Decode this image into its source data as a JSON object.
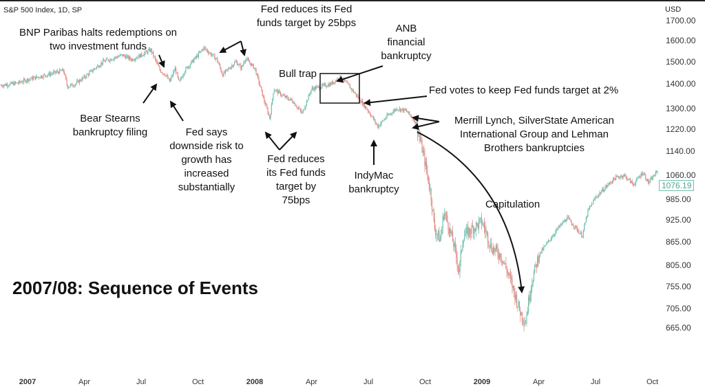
{
  "chart_data": {
    "type": "candlestick",
    "symbol": "S&P 500 Index, 1D, SP",
    "title": "2007/08: Sequence of Events",
    "ylabel": "USD",
    "yscale": "log",
    "ylim": [
      650,
      1720
    ],
    "y_ticks": [
      "1700.00",
      "1600.00",
      "1500.00",
      "1400.00",
      "1300.00",
      "1220.00",
      "1140.00",
      "1060.00",
      "985.00",
      "925.00",
      "865.00",
      "805.00",
      "755.00",
      "705.00",
      "665.00"
    ],
    "x_ticks": [
      {
        "label": "2007",
        "month": 0,
        "bold": true
      },
      {
        "label": "Apr",
        "month": 3
      },
      {
        "label": "Jul",
        "month": 6
      },
      {
        "label": "Oct",
        "month": 9
      },
      {
        "label": "2008",
        "month": 12,
        "bold": true
      },
      {
        "label": "Apr",
        "month": 15
      },
      {
        "label": "Jul",
        "month": 18
      },
      {
        "label": "Oct",
        "month": 21
      },
      {
        "label": "2009",
        "month": 24,
        "bold": true
      },
      {
        "label": "Apr",
        "month": 27
      },
      {
        "label": "Jul",
        "month": 30
      },
      {
        "label": "Oct",
        "month": 33
      }
    ],
    "last_price": "1076.19",
    "series_months_since_jan2007": [
      -1.4,
      -0.5,
      0,
      1,
      1.9,
      2.1,
      2.5,
      3,
      4,
      5,
      5.5,
      6,
      6.5,
      7,
      7.3,
      7.5,
      7.8,
      8,
      8.3,
      9,
      9.3,
      10,
      10.3,
      11,
      11.3,
      11.5,
      12,
      12.5,
      12.8,
      13,
      13.5,
      14,
      14.5,
      15,
      16,
      16.5,
      17,
      17.5,
      18,
      18.5,
      19,
      19.5,
      20,
      20.5,
      21,
      21.3,
      21.5,
      21.8,
      22,
      22.5,
      22.8,
      23,
      23.5,
      24,
      24.5,
      25,
      25.5,
      26,
      26.3,
      26.6,
      27,
      28,
      28.5,
      29,
      29.3,
      29.6,
      30,
      30.5,
      31,
      31.5,
      32,
      32.5,
      32.8,
      33.3
    ],
    "series_close": [
      1395,
      1405,
      1420,
      1440,
      1460,
      1390,
      1400,
      1430,
      1500,
      1530,
      1510,
      1530,
      1555,
      1460,
      1440,
      1410,
      1470,
      1405,
      1460,
      1530,
      1565,
      1510,
      1440,
      1500,
      1470,
      1515,
      1470,
      1330,
      1260,
      1380,
      1350,
      1330,
      1280,
      1380,
      1400,
      1430,
      1390,
      1340,
      1290,
      1230,
      1270,
      1300,
      1290,
      1250,
      1100,
      1000,
      900,
      870,
      950,
      860,
      790,
      880,
      900,
      920,
      850,
      830,
      770,
      700,
      676,
      760,
      830,
      900,
      930,
      900,
      880,
      950,
      990,
      1020,
      1050,
      1060,
      1030,
      1070,
      1035,
      1076
    ],
    "colors": {
      "up": "#6fbfae",
      "down": "#e08a84"
    },
    "annotations": {
      "bnp": "BNP Paribas halts redemptions on\ntwo investment funds",
      "fed25": "Fed reduces its Fed\nfunds target by 25bps",
      "anb": "ANB\nfinancial\nbankruptcy",
      "bulltrap": "Bull trap",
      "fedvotes": "Fed votes to keep Fed funds target at 2%",
      "bear": "Bear Stearns\nbankruptcy filing",
      "fedsays": "Fed says\ndownside risk to\ngrowth has\nincreased\nsubstantially",
      "fed75": "Fed reduces\nits Fed funds\ntarget by\n75bps",
      "indymac": "IndyMac\nbankruptcy",
      "merrill": "Merrill Lynch, SilverState American\nInternational Group and Lehman\nBrothers bankruptcies",
      "capitulation": "Capitulation"
    }
  }
}
